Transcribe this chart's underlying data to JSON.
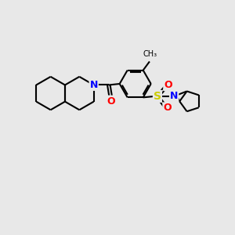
{
  "background_color": "#e8e8e8",
  "figure_size": [
    3.0,
    3.0
  ],
  "dpi": 100,
  "atom_colors": {
    "N": "#0000ff",
    "O": "#ff0000",
    "S": "#cccc00",
    "C": "#000000"
  },
  "bond_color": "#000000",
  "bond_width": 1.5,
  "font_size_atoms": 9,
  "font_size_methyl": 7
}
